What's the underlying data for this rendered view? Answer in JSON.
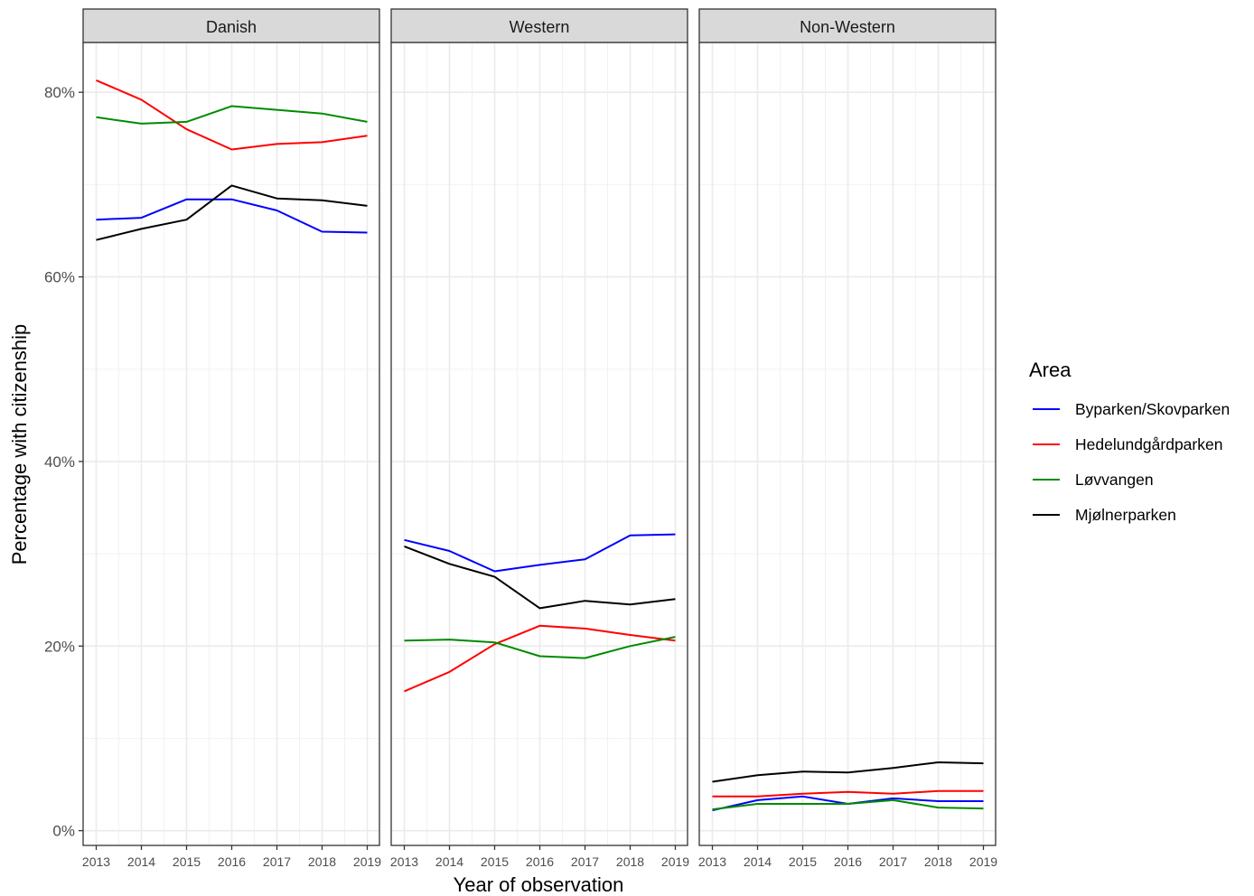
{
  "chart_data": {
    "type": "line",
    "xlabel": "Year of observation",
    "ylabel": "Percentage with citizenship",
    "x": [
      2013,
      2014,
      2015,
      2016,
      2017,
      2018,
      2019
    ],
    "x_tick_labels": [
      "2013",
      "2014",
      "2015",
      "2016",
      "2017",
      "2018",
      "2019"
    ],
    "ylim": [
      -1.6,
      85.4
    ],
    "y_ticks": [
      0,
      20,
      40,
      60,
      80
    ],
    "y_tick_labels": [
      "0%",
      "20%",
      "40%",
      "60%",
      "80%"
    ],
    "grid": true,
    "legend": {
      "title": "Area",
      "position": "right",
      "entries": [
        {
          "label": "Byparken/Skovparken",
          "color": "#0000ff"
        },
        {
          "label": "Hedelundgårdparken",
          "color": "#ff0000"
        },
        {
          "label": "Løvvangen",
          "color": "#008b00"
        },
        {
          "label": "Mjølnerparken",
          "color": "#000000"
        }
      ]
    },
    "panels": [
      {
        "title": "Danish",
        "series": [
          {
            "name": "Byparken/Skovparken",
            "color": "#0000ff",
            "values": [
              66.2,
              66.4,
              68.4,
              68.4,
              67.2,
              64.9,
              64.8
            ]
          },
          {
            "name": "Hedelundgårdparken",
            "color": "#ff0000",
            "values": [
              81.3,
              79.2,
              76.0,
              73.8,
              74.4,
              74.6,
              75.3
            ]
          },
          {
            "name": "Løvvangen",
            "color": "#008b00",
            "values": [
              77.3,
              76.6,
              76.8,
              78.5,
              78.1,
              77.7,
              76.8
            ]
          },
          {
            "name": "Mjølnerparken",
            "color": "#000000",
            "values": [
              64.0,
              65.2,
              66.2,
              69.9,
              68.5,
              68.3,
              67.7
            ]
          }
        ]
      },
      {
        "title": "Western",
        "series": [
          {
            "name": "Byparken/Skovparken",
            "color": "#0000ff",
            "values": [
              31.5,
              30.3,
              28.1,
              28.8,
              29.4,
              32.0,
              32.1
            ]
          },
          {
            "name": "Hedelundgårdparken",
            "color": "#ff0000",
            "values": [
              15.1,
              17.2,
              20.2,
              22.2,
              21.9,
              21.2,
              20.6
            ]
          },
          {
            "name": "Løvvangen",
            "color": "#008b00",
            "values": [
              20.6,
              20.7,
              20.4,
              18.9,
              18.7,
              20.0,
              21.0
            ]
          },
          {
            "name": "Mjølnerparken",
            "color": "#000000",
            "values": [
              30.8,
              28.9,
              27.5,
              24.1,
              24.9,
              24.5,
              25.1
            ]
          }
        ]
      },
      {
        "title": "Non-Western",
        "series": [
          {
            "name": "Byparken/Skovparken",
            "color": "#0000ff",
            "values": [
              2.2,
              3.3,
              3.7,
              2.9,
              3.5,
              3.2,
              3.2
            ]
          },
          {
            "name": "Hedelundgårdparken",
            "color": "#ff0000",
            "values": [
              3.7,
              3.7,
              4.0,
              4.2,
              4.0,
              4.3,
              4.3
            ]
          },
          {
            "name": "Løvvangen",
            "color": "#008b00",
            "values": [
              2.3,
              2.9,
              2.9,
              2.9,
              3.3,
              2.5,
              2.4
            ]
          },
          {
            "name": "Mjølnerparken",
            "color": "#000000",
            "values": [
              5.3,
              6.0,
              6.4,
              6.3,
              6.8,
              7.4,
              7.3
            ]
          }
        ]
      }
    ]
  }
}
